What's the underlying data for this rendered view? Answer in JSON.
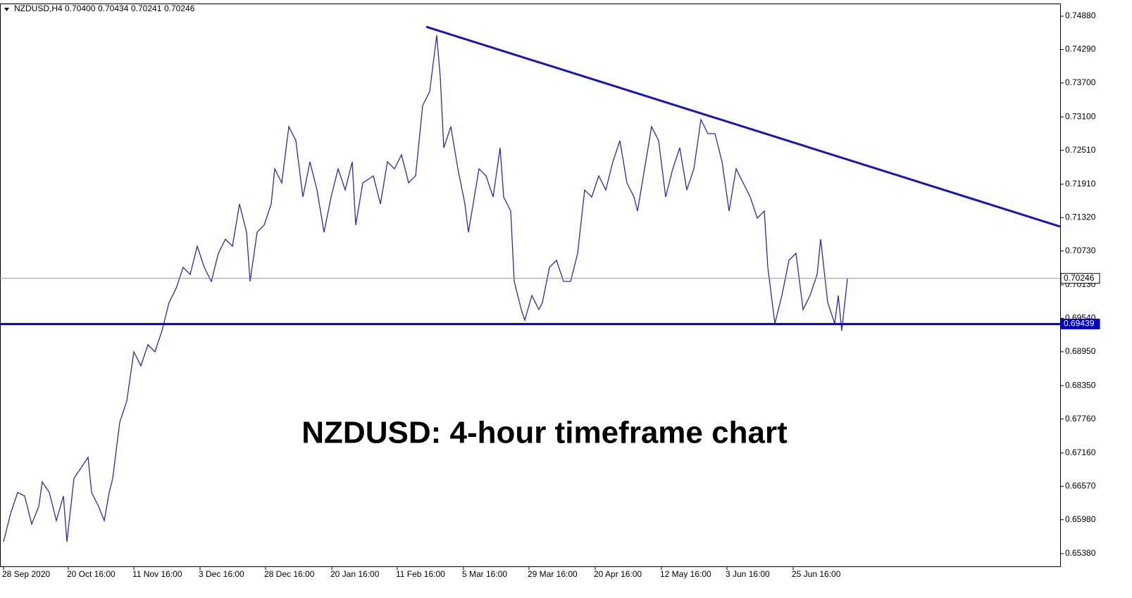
{
  "chart_data": {
    "type": "line",
    "symbol": "NZDUSD,H4",
    "ohlc": [
      {
        "value": 0.704,
        "label": "0.70400"
      },
      0.70434,
      0.70241,
      0.70246
    ],
    "annotation": "NZDUSD: 4-hour timeframe chart",
    "color": "#2a2ab8",
    "x": [
      5,
      15,
      25,
      35,
      45,
      55,
      60,
      70,
      80,
      90,
      95,
      105,
      115,
      125,
      130,
      140,
      148,
      155,
      160,
      165,
      170,
      180,
      190,
      200,
      210,
      220,
      230,
      240,
      250,
      260,
      270,
      280,
      290,
      300,
      310,
      320,
      330,
      340,
      350,
      355,
      365,
      375,
      385,
      390,
      400,
      410,
      420,
      430,
      440,
      450,
      460,
      470,
      480,
      490,
      500,
      505,
      515,
      530,
      540,
      550,
      560,
      570,
      580,
      590,
      600,
      610,
      620,
      625,
      630,
      640,
      650,
      660,
      665,
      675,
      680,
      690,
      700,
      710,
      715,
      725,
      730,
      740,
      745,
      755,
      765,
      770,
      780,
      790,
      800,
      810,
      820,
      830,
      840,
      850,
      860,
      870,
      880,
      890,
      900,
      905,
      915,
      925,
      935,
      945,
      955,
      965,
      975,
      985,
      995,
      1005,
      1015,
      1025,
      1035,
      1045,
      1055,
      1065,
      1075,
      1085,
      1090,
      1100,
      1110,
      1120,
      1130,
      1140,
      1150,
      1160,
      1165,
      1175,
      1185,
      1190,
      1195,
      1203
    ],
    "values": [
      0.65591,
      0.66088,
      0.66462,
      0.66399,
      0.65902,
      0.66213,
      0.66648,
      0.66462,
      0.65964,
      0.66399,
      0.65591,
      0.6671,
      0.66897,
      0.67083,
      0.66462,
      0.66213,
      0.65964,
      0.66462,
      0.6671,
      0.67208,
      0.67705,
      0.68078,
      0.68949,
      0.687,
      0.69073,
      0.68949,
      0.69322,
      0.69819,
      0.70068,
      0.70441,
      0.70316,
      0.70814,
      0.70441,
      0.70192,
      0.70689,
      0.70938,
      0.70814,
      0.7156,
      0.71062,
      0.70192,
      0.71062,
      0.71187,
      0.7156,
      0.72182,
      0.71933,
      0.72928,
      0.72679,
      0.71684,
      0.72306,
      0.71809,
      0.71062,
      0.71684,
      0.72182,
      0.71809,
      0.72306,
      0.71187,
      0.71933,
      0.72057,
      0.7156,
      0.72306,
      0.72182,
      0.7243,
      0.71933,
      0.72057,
      0.73301,
      0.73549,
      0.74544,
      0.73798,
      0.72555,
      0.72928,
      0.72182,
      0.7156,
      0.71062,
      0.71809,
      0.72182,
      0.72057,
      0.71684,
      0.72555,
      0.71684,
      0.71436,
      0.70192,
      0.69695,
      0.69508,
      0.69943,
      0.69695,
      0.69819,
      0.70441,
      0.70565,
      0.70192,
      0.70192,
      0.70689,
      0.71809,
      0.71684,
      0.72057,
      0.71809,
      0.72306,
      0.72679,
      0.71933,
      0.71684,
      0.71436,
      0.72182,
      0.72928,
      0.72679,
      0.71684,
      0.72182,
      0.72555,
      0.71809,
      0.72182,
      0.73052,
      0.72803,
      0.72803,
      0.72306,
      0.71436,
      0.72182,
      0.71933,
      0.71684,
      0.71311,
      0.71436,
      0.70441,
      0.69446,
      0.69943,
      0.70565,
      0.70689,
      0.69695,
      0.69943,
      0.70316,
      0.70938,
      0.69819,
      0.69446,
      0.69943,
      0.69322,
      0.70246
    ],
    "xlim": [
      0,
      1505
    ],
    "ylim": [
      0.65156,
      0.75104
    ],
    "xticks": [
      {
        "value": 5,
        "label": "28 Sep 2020"
      },
      {
        "value": 97,
        "label": "20 Oct 16:00"
      },
      {
        "value": 190,
        "label": "11 Nov 16:00"
      },
      {
        "value": 284,
        "label": "3 Dec 16:00"
      },
      {
        "value": 377,
        "label": "28 Dec 16:00"
      },
      {
        "value": 471,
        "label": "20 Jan 16:00"
      },
      {
        "value": 564,
        "label": "11 Feb 16:00"
      },
      {
        "value": 658,
        "label": "5 Mar 16:00"
      },
      {
        "value": 751,
        "label": "29 Mar 16:00"
      },
      {
        "value": 845,
        "label": "20 Apr 16:00"
      },
      {
        "value": 939,
        "label": "12 May 16:00"
      },
      {
        "value": 1032,
        "label": "3 Jun 16:00"
      },
      {
        "value": 1126,
        "label": "25 Jun 16:00"
      }
    ],
    "yticks": [
      {
        "value": 0.7488,
        "label": "0.74880"
      },
      {
        "value": 0.7429,
        "label": "0.74290"
      },
      {
        "value": 0.737,
        "label": "0.73700"
      },
      {
        "value": 0.731,
        "label": "0.73100"
      },
      {
        "value": 0.7251,
        "label": "0.72510"
      },
      {
        "value": 0.7191,
        "label": "0.71910"
      },
      {
        "value": 0.7132,
        "label": "0.71320"
      },
      {
        "value": 0.7073,
        "label": "0.70730"
      },
      {
        "value": 0.7013,
        "label": "0.70130"
      },
      {
        "value": 0.6954,
        "label": "0.69540"
      },
      {
        "value": 0.6895,
        "label": "0.68950"
      },
      {
        "value": 0.6835,
        "label": "0.68350"
      },
      {
        "value": 0.6776,
        "label": "0.67760"
      },
      {
        "value": 0.6716,
        "label": "0.67160"
      },
      {
        "value": 0.6657,
        "label": "0.66570"
      },
      {
        "value": 0.6598,
        "label": "0.65980"
      },
      {
        "value": 0.6538,
        "label": "0.65380"
      }
    ],
    "hlines": [
      {
        "value": 0.70246,
        "color": "#8c9aa6"
      },
      {
        "value": 0.69439,
        "color": "#0000cc"
      }
    ],
    "trendline": {
      "x": [
        605,
        1505
      ],
      "values": [
        0.74693,
        0.71162
      ],
      "color": "#1414c4"
    }
  }
}
